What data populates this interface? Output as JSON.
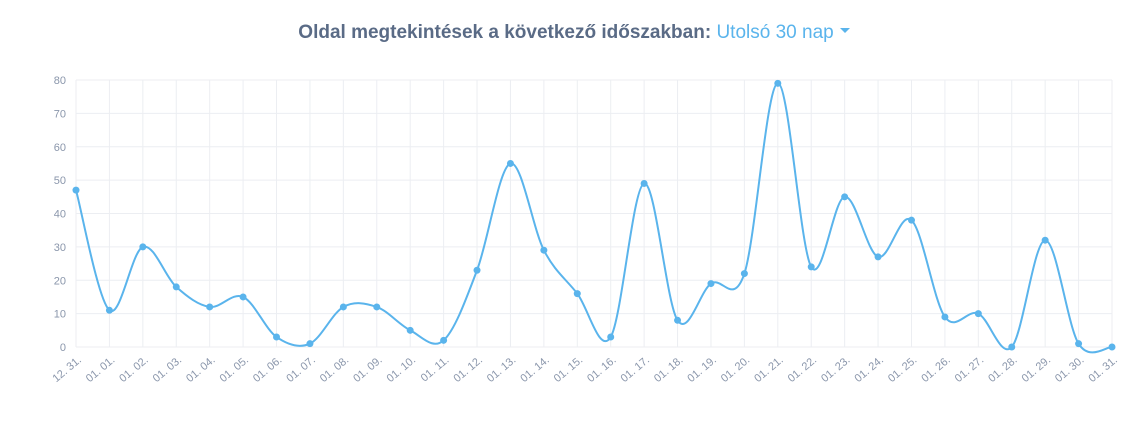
{
  "header": {
    "label": "Oldal megtekintések a következő időszakban:",
    "period": "Utolsó 30 nap"
  },
  "colors": {
    "line": "#5ab4ec",
    "grid": "#eceef2",
    "title": "#5a6b86",
    "accent": "#5ab4ec",
    "tick": "#8a96ab"
  },
  "icons": {
    "period_dropdown": "caret-down-icon"
  },
  "chart_data": {
    "type": "line",
    "title": "",
    "xlabel": "",
    "ylabel": "",
    "ylim": [
      0,
      80
    ],
    "yticks": [
      0,
      10,
      20,
      30,
      40,
      50,
      60,
      70,
      80
    ],
    "grid": true,
    "legend": "none",
    "categories": [
      "12. 31.",
      "01. 01.",
      "01. 02.",
      "01. 03.",
      "01. 04.",
      "01. 05.",
      "01. 06.",
      "01. 07.",
      "01. 08.",
      "01. 09.",
      "01. 10.",
      "01. 11.",
      "01. 12.",
      "01. 13.",
      "01. 14.",
      "01. 15.",
      "01. 16.",
      "01. 17.",
      "01. 18.",
      "01. 19.",
      "01. 20.",
      "01. 21.",
      "01. 22.",
      "01. 23.",
      "01. 24.",
      "01. 25.",
      "01. 26.",
      "01. 27.",
      "01. 28.",
      "01. 29.",
      "01. 30.",
      "01. 31."
    ],
    "series": [
      {
        "values": [
          47,
          11,
          30,
          18,
          12,
          15,
          3,
          1,
          12,
          12,
          5,
          2,
          23,
          55,
          29,
          16,
          3,
          49,
          8,
          19,
          22,
          79,
          24,
          45,
          27,
          38,
          9,
          10,
          0,
          32,
          1,
          0
        ]
      }
    ]
  }
}
